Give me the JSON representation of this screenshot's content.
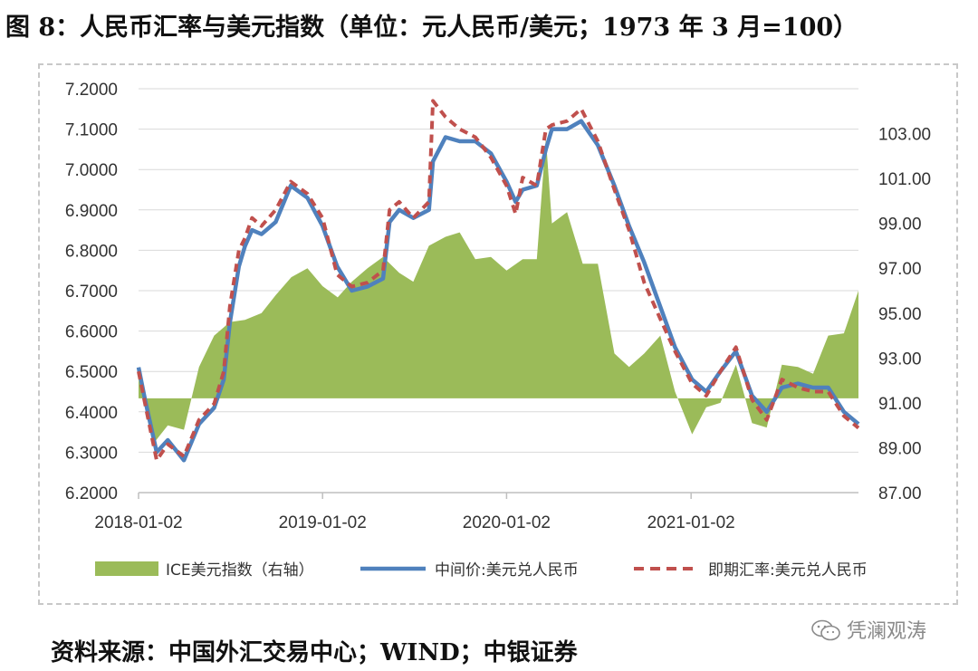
{
  "title": "图 8：人民币汇率与美元指数（单位：元人民币/美元；1973 年 3 月=100）",
  "source": "资料来源：中国外汇交易中心；WIND；中银证券",
  "watermark": "凭澜观涛",
  "colors": {
    "area": "#9bbb59",
    "mid": "#4f81bd",
    "spot": "#c0504d",
    "grid": "#d9d9d9"
  },
  "chart_data": {
    "type": "line",
    "x_range": [
      "2018-01-02",
      "2021-11-30"
    ],
    "xticks": [
      "2018-01-02",
      "2019-01-02",
      "2020-01-02",
      "2021-01-02"
    ],
    "y_left": {
      "ylim": [
        6.2,
        7.2
      ],
      "ticks": [
        "7.2000",
        "7.1000",
        "7.0000",
        "6.9000",
        "6.8000",
        "6.7000",
        "6.6000",
        "6.5000",
        "6.4000",
        "6.3000",
        "6.2000"
      ]
    },
    "y_right": {
      "ylim": [
        87,
        105
      ],
      "ticks": [
        "103.00",
        "101.00",
        "99.00",
        "97.00",
        "95.00",
        "93.00",
        "91.00",
        "89.00",
        "87.00"
      ],
      "area_baseline": 91.2
    },
    "series": [
      {
        "name": "ICE美元指数（右轴）",
        "type": "area",
        "axis": "right",
        "x": [
          "2018-01-02",
          "2018-02-01",
          "2018-03-01",
          "2018-04-02",
          "2018-05-02",
          "2018-06-01",
          "2018-07-02",
          "2018-08-01",
          "2018-09-03",
          "2018-10-01",
          "2018-11-01",
          "2018-12-03",
          "2019-01-02",
          "2019-02-01",
          "2019-03-01",
          "2019-04-01",
          "2019-05-02",
          "2019-06-03",
          "2019-07-01",
          "2019-08-01",
          "2019-09-03",
          "2019-10-01",
          "2019-11-01",
          "2019-12-02",
          "2020-01-02",
          "2020-02-03",
          "2020-03-02",
          "2020-03-20",
          "2020-04-01",
          "2020-05-01",
          "2020-06-01",
          "2020-07-01",
          "2020-08-03",
          "2020-09-01",
          "2020-10-01",
          "2020-11-02",
          "2020-12-01",
          "2021-01-04",
          "2021-02-01",
          "2021-03-01",
          "2021-04-01",
          "2021-05-03",
          "2021-06-01",
          "2021-07-01",
          "2021-08-02",
          "2021-09-01",
          "2021-10-01",
          "2021-11-01",
          "2021-11-30"
        ],
        "values": [
          92.1,
          89.2,
          90.0,
          89.8,
          92.6,
          94.0,
          94.6,
          94.7,
          95.0,
          95.8,
          96.6,
          97.0,
          96.2,
          95.7,
          96.4,
          97.0,
          97.5,
          96.8,
          96.4,
          98.0,
          98.4,
          98.6,
          97.4,
          97.5,
          96.9,
          97.4,
          97.4,
          102.8,
          99.0,
          99.5,
          97.2,
          97.2,
          93.2,
          92.6,
          93.2,
          94.0,
          91.5,
          89.6,
          90.8,
          91.0,
          92.7,
          90.1,
          89.9,
          92.7,
          92.6,
          92.3,
          94.0,
          94.1,
          96.0
        ]
      },
      {
        "name": "中间价:美元兑人民币",
        "type": "line",
        "axis": "left",
        "x": [
          "2018-01-02",
          "2018-01-15",
          "2018-02-07",
          "2018-03-01",
          "2018-04-02",
          "2018-05-02",
          "2018-06-01",
          "2018-06-20",
          "2018-07-02",
          "2018-07-20",
          "2018-08-01",
          "2018-08-15",
          "2018-09-03",
          "2018-10-01",
          "2018-10-31",
          "2018-12-03",
          "2019-01-02",
          "2019-01-31",
          "2019-03-01",
          "2019-04-01",
          "2019-05-02",
          "2019-05-15",
          "2019-06-03",
          "2019-07-01",
          "2019-08-01",
          "2019-08-09",
          "2019-09-03",
          "2019-10-01",
          "2019-11-01",
          "2019-12-02",
          "2020-01-02",
          "2020-01-20",
          "2020-02-03",
          "2020-03-02",
          "2020-03-20",
          "2020-04-01",
          "2020-05-01",
          "2020-05-29",
          "2020-07-01",
          "2020-08-03",
          "2020-09-01",
          "2020-10-01",
          "2020-11-02",
          "2020-12-01",
          "2021-01-04",
          "2021-02-01",
          "2021-03-01",
          "2021-04-01",
          "2021-05-03",
          "2021-06-01",
          "2021-07-01",
          "2021-08-02",
          "2021-09-01",
          "2021-10-01",
          "2021-11-01",
          "2021-11-30"
        ],
        "values": [
          6.51,
          6.43,
          6.3,
          6.33,
          6.28,
          6.37,
          6.41,
          6.48,
          6.62,
          6.76,
          6.81,
          6.85,
          6.84,
          6.87,
          6.96,
          6.93,
          6.86,
          6.76,
          6.7,
          6.71,
          6.73,
          6.87,
          6.9,
          6.88,
          6.9,
          7.02,
          7.08,
          7.07,
          7.07,
          7.04,
          6.97,
          6.92,
          6.95,
          6.96,
          7.05,
          7.1,
          7.1,
          7.12,
          7.06,
          6.96,
          6.86,
          6.77,
          6.66,
          6.56,
          6.48,
          6.45,
          6.5,
          6.55,
          6.44,
          6.4,
          6.46,
          6.47,
          6.46,
          6.46,
          6.4,
          6.37
        ]
      },
      {
        "name": "即期汇率:美元兑人民币",
        "type": "line",
        "axis": "left",
        "x": [
          "2018-01-02",
          "2018-01-15",
          "2018-02-07",
          "2018-03-01",
          "2018-04-02",
          "2018-05-02",
          "2018-06-01",
          "2018-06-20",
          "2018-07-02",
          "2018-07-20",
          "2018-08-01",
          "2018-08-15",
          "2018-09-03",
          "2018-10-01",
          "2018-10-31",
          "2018-12-03",
          "2019-01-02",
          "2019-01-31",
          "2019-03-01",
          "2019-04-01",
          "2019-05-02",
          "2019-05-15",
          "2019-06-03",
          "2019-07-01",
          "2019-08-01",
          "2019-08-09",
          "2019-09-03",
          "2019-10-01",
          "2019-11-01",
          "2019-12-02",
          "2020-01-02",
          "2020-01-20",
          "2020-02-03",
          "2020-03-02",
          "2020-03-20",
          "2020-04-01",
          "2020-05-01",
          "2020-05-29",
          "2020-07-01",
          "2020-08-03",
          "2020-09-01",
          "2020-10-01",
          "2020-11-02",
          "2020-12-01",
          "2021-01-04",
          "2021-02-01",
          "2021-03-01",
          "2021-04-01",
          "2021-05-03",
          "2021-06-01",
          "2021-07-01",
          "2021-08-02",
          "2021-09-01",
          "2021-10-01",
          "2021-11-01",
          "2021-11-30"
        ],
        "values": [
          6.5,
          6.42,
          6.28,
          6.32,
          6.29,
          6.38,
          6.42,
          6.5,
          6.66,
          6.8,
          6.83,
          6.88,
          6.86,
          6.9,
          6.97,
          6.94,
          6.88,
          6.74,
          6.71,
          6.72,
          6.75,
          6.9,
          6.92,
          6.88,
          6.92,
          7.17,
          7.13,
          7.1,
          7.08,
          7.03,
          6.96,
          6.89,
          6.98,
          6.96,
          7.1,
          7.11,
          7.12,
          7.15,
          7.07,
          6.95,
          6.85,
          6.72,
          6.63,
          6.55,
          6.47,
          6.44,
          6.5,
          6.56,
          6.43,
          6.38,
          6.48,
          6.46,
          6.45,
          6.45,
          6.39,
          6.36
        ]
      }
    ],
    "legend": "bottom"
  }
}
